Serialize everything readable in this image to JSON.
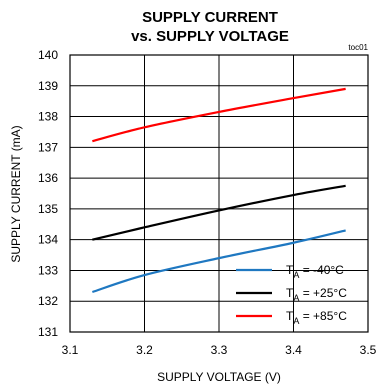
{
  "chart_data": {
    "type": "line",
    "title_line1": "SUPPLY CURRENT",
    "title_line2": "vs. SUPPLY VOLTAGE",
    "note": "toc01",
    "xlabel": "SUPPLY VOLTAGE (V)",
    "ylabel": "SUPPLY CURRENT (mA)",
    "xlim": [
      3.1,
      3.5
    ],
    "ylim": [
      131,
      140
    ],
    "xticks": [
      "3.1",
      "3.2",
      "3.3",
      "3.4",
      "3.5"
    ],
    "yticks": [
      "131",
      "132",
      "133",
      "134",
      "135",
      "136",
      "137",
      "138",
      "139",
      "140"
    ],
    "grid": true,
    "legend_position": "bottom-right",
    "series": [
      {
        "name": "-40°C",
        "legend_sub": "A",
        "color": "#1f78c1",
        "x": [
          3.13,
          3.2,
          3.3,
          3.4,
          3.47
        ],
        "y": [
          132.3,
          132.85,
          133.4,
          133.9,
          134.3
        ]
      },
      {
        "name": "+25°C",
        "legend_sub": "A",
        "color": "#000000",
        "x": [
          3.13,
          3.2,
          3.3,
          3.4,
          3.47
        ],
        "y": [
          134.0,
          134.4,
          134.95,
          135.45,
          135.75
        ]
      },
      {
        "name": "+85°C",
        "legend_sub": "A",
        "color": "#ff0000",
        "x": [
          3.13,
          3.2,
          3.3,
          3.4,
          3.47
        ],
        "y": [
          137.2,
          137.65,
          138.15,
          138.6,
          138.9
        ]
      }
    ]
  }
}
